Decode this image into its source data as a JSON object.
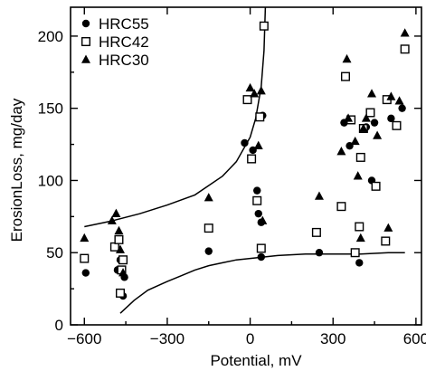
{
  "chart_data": {
    "type": "scatter",
    "title": "",
    "xlabel": "Potential, mV",
    "ylabel": "ErosionLoss, mg/day",
    "xlim": [
      -650,
      620
    ],
    "ylim": [
      0,
      220
    ],
    "xticks": [
      -600,
      -300,
      0,
      300,
      600
    ],
    "yticks": [
      0,
      50,
      100,
      150,
      200
    ],
    "grid": false,
    "legend_position": "top-left",
    "series": [
      {
        "name": "HRC55",
        "marker": "filled-circle",
        "points": [
          [
            -595,
            36
          ],
          [
            -480,
            38
          ],
          [
            -470,
            45
          ],
          [
            -460,
            20
          ],
          [
            -455,
            33
          ],
          [
            -150,
            51
          ],
          [
            -20,
            126
          ],
          [
            10,
            121
          ],
          [
            25,
            93
          ],
          [
            30,
            77
          ],
          [
            40,
            71
          ],
          [
            45,
            145
          ],
          [
            40,
            47
          ],
          [
            250,
            50
          ],
          [
            340,
            140
          ],
          [
            360,
            124
          ],
          [
            395,
            43
          ],
          [
            420,
            137
          ],
          [
            440,
            100
          ],
          [
            450,
            140
          ],
          [
            510,
            143
          ],
          [
            550,
            150
          ]
        ]
      },
      {
        "name": "HRC42",
        "marker": "open-square",
        "points": [
          [
            -600,
            46
          ],
          [
            -490,
            54
          ],
          [
            -475,
            59
          ],
          [
            -470,
            22
          ],
          [
            -465,
            38
          ],
          [
            -460,
            45
          ],
          [
            -150,
            67
          ],
          [
            -10,
            156
          ],
          [
            5,
            115
          ],
          [
            25,
            86
          ],
          [
            35,
            144
          ],
          [
            40,
            53
          ],
          [
            50,
            207
          ],
          [
            240,
            64
          ],
          [
            330,
            82
          ],
          [
            345,
            172
          ],
          [
            365,
            142
          ],
          [
            380,
            50
          ],
          [
            395,
            68
          ],
          [
            400,
            116
          ],
          [
            410,
            136
          ],
          [
            435,
            147
          ],
          [
            455,
            96
          ],
          [
            490,
            58
          ],
          [
            495,
            156
          ],
          [
            530,
            138
          ],
          [
            560,
            191
          ]
        ]
      },
      {
        "name": "HRC30",
        "marker": "filled-triangle",
        "points": [
          [
            -600,
            60
          ],
          [
            -500,
            72
          ],
          [
            -485,
            77
          ],
          [
            -475,
            65
          ],
          [
            -470,
            52
          ],
          [
            -460,
            36
          ],
          [
            -150,
            88
          ],
          [
            0,
            164
          ],
          [
            15,
            160
          ],
          [
            30,
            124
          ],
          [
            40,
            162
          ],
          [
            45,
            72
          ],
          [
            250,
            89
          ],
          [
            330,
            120
          ],
          [
            350,
            184
          ],
          [
            355,
            143
          ],
          [
            380,
            127
          ],
          [
            390,
            103
          ],
          [
            400,
            60
          ],
          [
            410,
            136
          ],
          [
            420,
            143
          ],
          [
            440,
            160
          ],
          [
            460,
            131
          ],
          [
            500,
            67
          ],
          [
            510,
            158
          ],
          [
            540,
            155
          ],
          [
            560,
            202
          ]
        ]
      }
    ],
    "curves": [
      {
        "name": "upper-curve",
        "x": [
          -600,
          -500,
          -400,
          -300,
          -200,
          -100,
          -50,
          0,
          20,
          40,
          50,
          55
        ],
        "y": [
          68,
          72,
          77,
          83,
          90,
          103,
          113,
          130,
          143,
          165,
          190,
          220
        ]
      },
      {
        "name": "lower-curve",
        "x": [
          -470,
          -420,
          -370,
          -300,
          -250,
          -200,
          -150,
          -100,
          -50,
          0,
          50,
          100,
          200,
          300,
          400,
          500,
          560
        ],
        "y": [
          8,
          17,
          24,
          30,
          34,
          38,
          41,
          43,
          45,
          46,
          47,
          48,
          49,
          49,
          49,
          50,
          50
        ]
      }
    ]
  }
}
